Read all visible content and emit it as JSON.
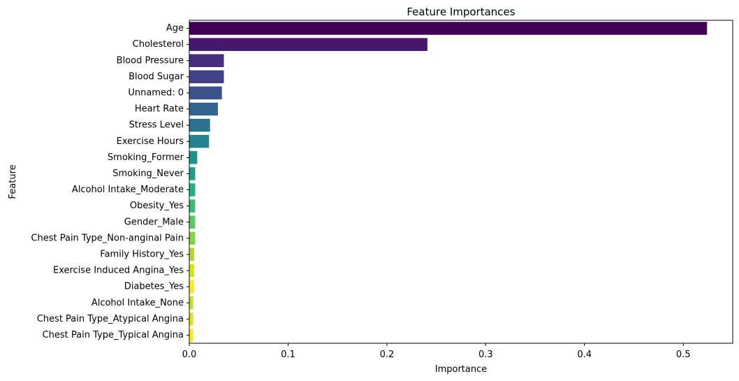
{
  "chart_data": {
    "type": "bar",
    "orientation": "horizontal",
    "title": "Feature Importances",
    "xlabel": "Importance",
    "ylabel": "Feature",
    "xlim": [
      0,
      0.55
    ],
    "xticks": [
      0,
      0.1,
      0.2,
      0.3,
      0.4,
      0.5
    ],
    "xtick_labels": [
      "0.0",
      "0.1",
      "0.2",
      "0.3",
      "0.4",
      "0.5"
    ],
    "grid": false,
    "colormap": "viridis",
    "categories": [
      "Age",
      "Cholesterol",
      "Blood Pressure",
      "Blood Sugar",
      "Unnamed: 0",
      "Heart Rate",
      "Stress Level",
      "Exercise Hours",
      "Smoking_Former",
      "Smoking_Never",
      "Alcohol Intake_Moderate",
      "Obesity_Yes",
      "Gender_Male",
      "Chest Pain Type_Non-anginal Pain",
      "Family History_Yes",
      "Exercise Induced Angina_Yes",
      "Diabetes_Yes",
      "Alcohol Intake_None",
      "Chest Pain Type_Atypical Angina",
      "Chest Pain Type_Typical Angina"
    ],
    "values": [
      0.524,
      0.241,
      0.035,
      0.035,
      0.033,
      0.029,
      0.021,
      0.02,
      0.008,
      0.006,
      0.006,
      0.006,
      0.006,
      0.006,
      0.005,
      0.005,
      0.005,
      0.004,
      0.004,
      0.004
    ],
    "colors": [
      "#440154",
      "#48186a",
      "#472d7b",
      "#424086",
      "#3b528b",
      "#33638d",
      "#2c728e",
      "#26828e",
      "#21918c",
      "#1fa088",
      "#28ae80",
      "#3fbc73",
      "#5ec962",
      "#84d44b",
      "#addc30",
      "#d8e219",
      "#fde725",
      "#c8e020",
      "#e0e31a",
      "#fde725"
    ]
  }
}
